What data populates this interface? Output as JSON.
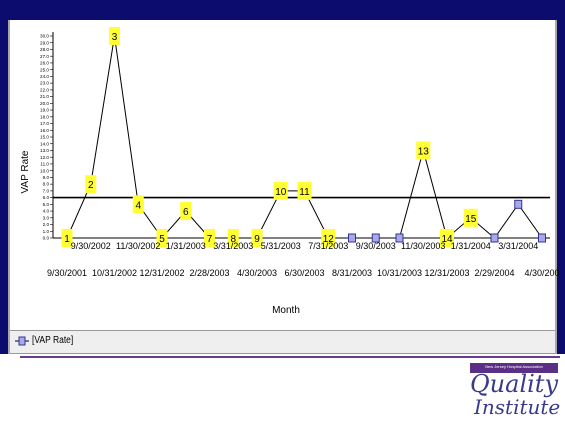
{
  "colors": {
    "frame": "#0c0c6e",
    "axis": "#000000",
    "series_line": "#000000",
    "point_fill": "#a9a9e8",
    "point_stroke": "#333399",
    "label_bg": "#ffff33",
    "center_line": "#000000",
    "legend_bg": "#efefef",
    "accent": "#6a3b8f"
  },
  "legend": {
    "label": "[VAP Rate]"
  },
  "logo": {
    "banner": "New Jersey Hospital Association",
    "line1": "Quality",
    "line2": "Institute"
  },
  "chart_data": {
    "type": "line",
    "title": "",
    "ylabel": "VAP Rate",
    "xlabel": "Month",
    "ylim": [
      0,
      30
    ],
    "center_line": 6,
    "yticks": [
      "0.0",
      "1.0",
      "2.0",
      "3.0",
      "4.0",
      "5.0",
      "6.0",
      "7.0",
      "8.0",
      "9.0",
      "10.0",
      "11.0",
      "12.0",
      "13.0",
      "14.0",
      "15.0",
      "16.0",
      "17.0",
      "18.0",
      "19.0",
      "20.0",
      "21.0",
      "22.0",
      "23.0",
      "24.0",
      "25.0",
      "26.0",
      "27.0",
      "28.0",
      "29.0",
      "30.0"
    ],
    "x_labels_upper": [
      {
        "label": "9/30/2002",
        "index": 1
      },
      {
        "label": "11/30/2002",
        "index": 3
      },
      {
        "label": "1/31/2003",
        "index": 5
      },
      {
        "label": "3/31/2003",
        "index": 7
      },
      {
        "label": "5/31/2003",
        "index": 9
      },
      {
        "label": "7/31/2003",
        "index": 11
      },
      {
        "label": "9/30/2003",
        "index": 13
      },
      {
        "label": "11/30/2003",
        "index": 15
      },
      {
        "label": "1/31/2004",
        "index": 17
      },
      {
        "label": "3/31/2004",
        "index": 19
      }
    ],
    "x_labels_lower": [
      {
        "label": "9/30/2001",
        "index": 0
      },
      {
        "label": "10/31/2002",
        "index": 2
      },
      {
        "label": "12/31/2002",
        "index": 4
      },
      {
        "label": "2/28/2003",
        "index": 6
      },
      {
        "label": "4/30/2003",
        "index": 8
      },
      {
        "label": "6/30/2003",
        "index": 10
      },
      {
        "label": "8/31/2003",
        "index": 12
      },
      {
        "label": "10/31/2003",
        "index": 14
      },
      {
        "label": "12/31/2003",
        "index": 16
      },
      {
        "label": "2/29/2004",
        "index": 18
      },
      {
        "label": "4/30/200",
        "index": 20
      }
    ],
    "series": [
      {
        "name": "VAP Rate",
        "values": [
          0,
          8,
          30,
          5,
          0,
          4,
          0,
          0,
          0,
          7,
          7,
          0,
          0,
          0,
          0,
          13,
          0,
          3,
          0,
          5,
          0
        ]
      }
    ],
    "point_labels": [
      "1",
      "2",
      "3",
      "4",
      "5",
      "6",
      "7",
      "8",
      "9",
      "10",
      "11",
      "12",
      "",
      "",
      "",
      "13",
      "14",
      "15",
      "",
      "",
      ""
    ]
  }
}
